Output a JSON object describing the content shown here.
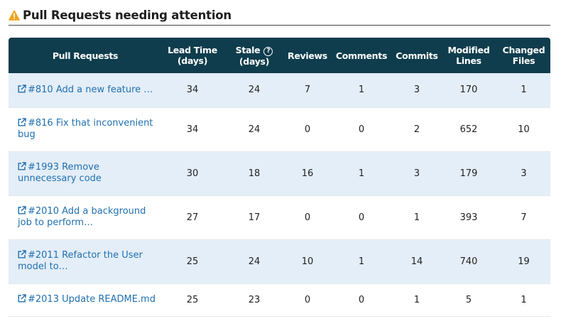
{
  "section": {
    "title": "Pull Requests needing attention",
    "icon": "warning-icon",
    "accent_color": "#f0a21b"
  },
  "table": {
    "header_color": "#0f3d4d",
    "stripe_color": "#e4eef8",
    "link_color": "#1f6fb0",
    "columns": [
      {
        "key": "pr",
        "line1": "Pull Requests",
        "line2": ""
      },
      {
        "key": "lead",
        "line1": "Lead Time",
        "line2": "(days)"
      },
      {
        "key": "stale",
        "line1": "Stale",
        "line2": "(days)",
        "help": "?"
      },
      {
        "key": "reviews",
        "line1": "Reviews",
        "line2": ""
      },
      {
        "key": "comments",
        "line1": "Comments",
        "line2": ""
      },
      {
        "key": "commits",
        "line1": "Commits",
        "line2": ""
      },
      {
        "key": "modified",
        "line1": "Modified",
        "line2": "Lines"
      },
      {
        "key": "changed",
        "line1": "Changed",
        "line2": "Files"
      }
    ],
    "rows": [
      {
        "title": "#810 Add a new feature …",
        "lead": "34",
        "stale": "24",
        "reviews": "7",
        "comments": "1",
        "commits": "3",
        "modified": "170",
        "changed": "1"
      },
      {
        "title": "#816 Fix that inconvenient bug",
        "lead": "34",
        "stale": "24",
        "reviews": "0",
        "comments": "0",
        "commits": "2",
        "modified": "652",
        "changed": "10"
      },
      {
        "title": "#1993 Remove unnecessary code",
        "lead": "30",
        "stale": "18",
        "reviews": "16",
        "comments": "1",
        "commits": "3",
        "modified": "179",
        "changed": "3"
      },
      {
        "title": "#2010 Add a background job to perform…",
        "lead": "27",
        "stale": "17",
        "reviews": "0",
        "comments": "0",
        "commits": "1",
        "modified": "393",
        "changed": "7"
      },
      {
        "title": "#2011 Refactor the User model to…",
        "lead": "25",
        "stale": "24",
        "reviews": "10",
        "comments": "1",
        "commits": "14",
        "modified": "740",
        "changed": "19"
      },
      {
        "title": "#2013 Update README.md",
        "lead": "25",
        "stale": "23",
        "reviews": "0",
        "comments": "0",
        "commits": "1",
        "modified": "5",
        "changed": "1"
      }
    ]
  }
}
